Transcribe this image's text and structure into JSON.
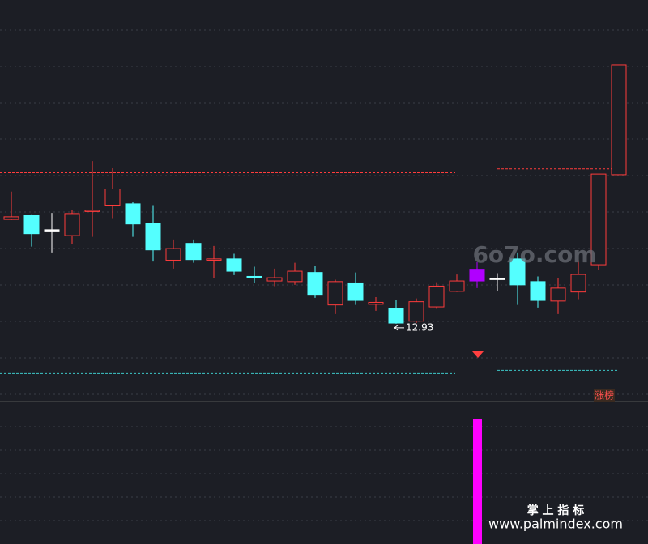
{
  "chart_data": {
    "type": "candlestick",
    "open": [
      14.54,
      14.61,
      14.38,
      14.29,
      14.67,
      14.76,
      14.78,
      14.48,
      13.91,
      14.17,
      13.91,
      13.93,
      13.66,
      13.59,
      13.58,
      13.72,
      13.22,
      13.56,
      13.23,
      13.16,
      12.97,
      13.19,
      13.43,
      13.59,
      13.63,
      13.93,
      13.58,
      13.28,
      13.42,
      13.84,
      15.23
    ],
    "high": [
      14.97,
      14.62,
      14.64,
      14.68,
      15.44,
      15.33,
      14.81,
      14.76,
      14.23,
      14.23,
      14.13,
      14.01,
      13.81,
      13.78,
      13.87,
      13.82,
      13.61,
      13.72,
      13.34,
      13.29,
      13.32,
      13.57,
      13.69,
      13.88,
      13.71,
      14.03,
      13.66,
      13.63,
      13.91,
      15.24,
      16.93
    ],
    "low": [
      14.53,
      14.12,
      14.03,
      14.16,
      14.27,
      14.56,
      14.27,
      13.89,
      13.78,
      13.87,
      13.63,
      13.68,
      13.56,
      13.51,
      13.53,
      13.33,
      13.08,
      13.22,
      13.13,
      12.93,
      12.94,
      13.16,
      13.42,
      13.48,
      13.43,
      13.22,
      13.18,
      13.08,
      13.31,
      13.76,
      15.23
    ],
    "close": [
      14.58,
      14.32,
      14.38,
      14.63,
      14.68,
      15.01,
      14.47,
      14.07,
      14.09,
      13.92,
      13.93,
      13.74,
      13.64,
      13.64,
      13.74,
      13.37,
      13.58,
      13.29,
      13.26,
      12.94,
      13.27,
      13.51,
      13.59,
      13.77,
      13.63,
      13.53,
      13.29,
      13.48,
      13.69,
      15.24,
      16.93
    ],
    "candle_colors": [
      "#ff3c3c",
      "#54ffff",
      "#ffffff",
      "#ff3c3c",
      "#ff3c3c",
      "#ff3c3c",
      "#54ffff",
      "#54ffff",
      "#ff3c3c",
      "#54ffff",
      "#ff3c3c",
      "#54ffff",
      "#54ffff",
      "#ff3c3c",
      "#ff3c3c",
      "#54ffff",
      "#ff3c3c",
      "#54ffff",
      "#ff3c3c",
      "#54ffff",
      "#ff3c3c",
      "#ff3c3c",
      "#ff3c3c",
      "#b000ff",
      "#ffffff",
      "#54ffff",
      "#54ffff",
      "#ff3c3c",
      "#ff3c3c",
      "#ff3c3c",
      "#ff3c3c"
    ],
    "ylim": [
      11.74,
      17.93
    ],
    "low_label": 12.93,
    "levels": [
      {
        "color": "#ff3c3c",
        "values": [
          15.26,
          15.32
        ]
      },
      {
        "color": "#3cc8c8",
        "values": [
          12.16,
          12.21
        ]
      }
    ]
  },
  "overlays": {
    "site": "6o7o.com",
    "brand": "掌 上 指 标",
    "url": "www.palmindex.com",
    "tag": "涨榜"
  }
}
